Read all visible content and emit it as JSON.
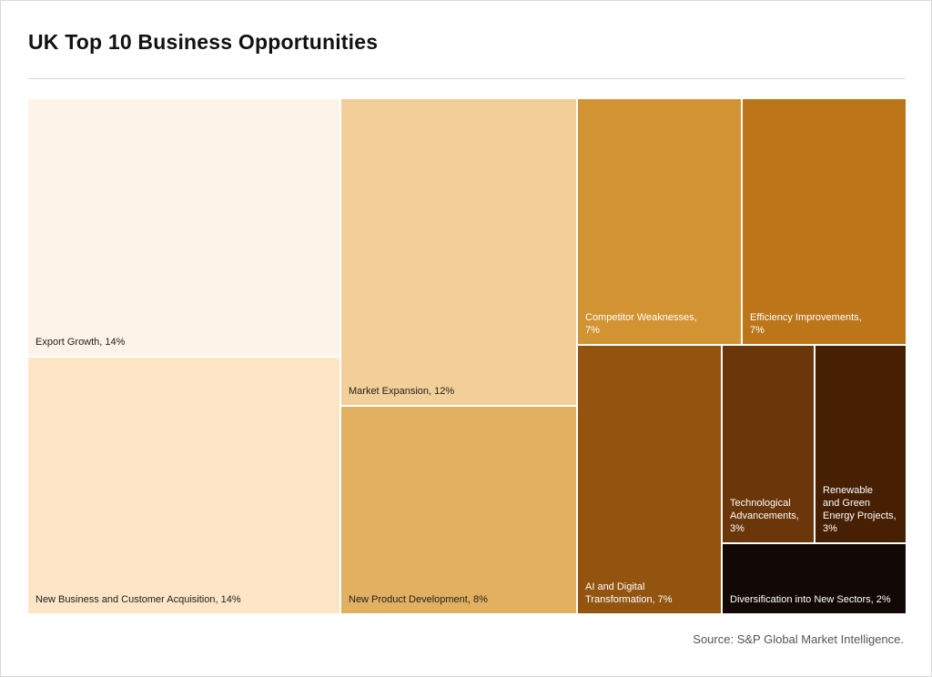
{
  "title": "UK Top 10 Business Opportunities",
  "source": "Source: S&P Global Market Intelligence.",
  "chart_data": {
    "type": "treemap",
    "title": "UK Top 10 Business Opportunities",
    "unit": "%",
    "items": [
      {
        "name": "Export Growth",
        "label": "Export Growth, 14%",
        "value": 14,
        "color": "#fdf3e8",
        "text_color": "#222222"
      },
      {
        "name": "New Business and Customer Acquisition",
        "label": "New Business and Customer Acquisition, 14%",
        "value": 14,
        "color": "#fde5c5",
        "text_color": "#222222"
      },
      {
        "name": "Market Expansion",
        "label": "Market Expansion, 12%",
        "value": 12,
        "color": "#f2cf99",
        "text_color": "#222222"
      },
      {
        "name": "New Product Development",
        "label": "New Product Development, 8%",
        "value": 8,
        "color": "#e2b061",
        "text_color": "#222222"
      },
      {
        "name": "Competitor Weaknesses",
        "label": "Competitor Weaknesses,\n7%",
        "value": 7,
        "color": "#d29332",
        "text_color": "#ffffff"
      },
      {
        "name": "Efficiency Improvements",
        "label": "Efficiency Improvements,\n7%",
        "value": 7,
        "color": "#bc7518",
        "text_color": "#ffffff"
      },
      {
        "name": "AI and Digital Transformation",
        "label": "AI and Digital\nTransformation, 7%",
        "value": 7,
        "color": "#935410",
        "text_color": "#ffffff"
      },
      {
        "name": "Technological Advancements",
        "label": "Technological\nAdvancements,\n3%",
        "value": 3,
        "color": "#6b370a",
        "text_color": "#ffffff"
      },
      {
        "name": "Renewable and Green Energy Projects",
        "label": "Renewable\nand Green\nEnergy Projects,\n3%",
        "value": 3,
        "color": "#472004",
        "text_color": "#ffffff"
      },
      {
        "name": "Diversification into New Sectors",
        "label": "Diversification into New Sectors, 2%",
        "value": 2,
        "color": "#120906",
        "text_color": "#ffffff"
      }
    ]
  }
}
